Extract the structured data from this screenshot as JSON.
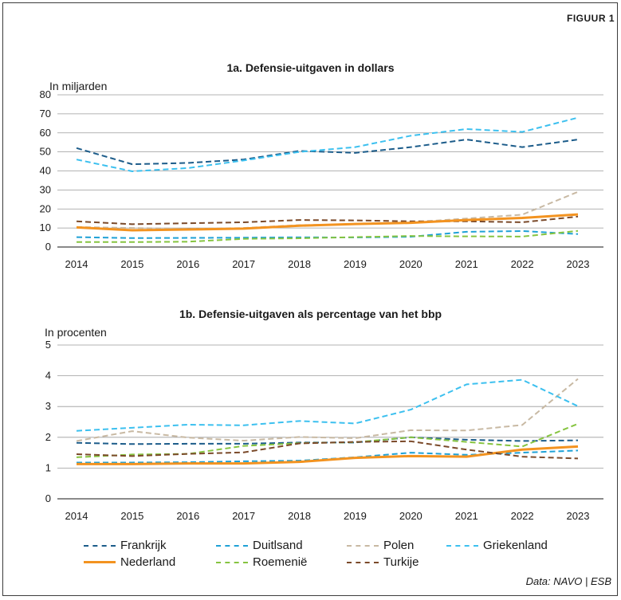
{
  "figure_label": "FIGUUR 1",
  "source": "Data: NAVO | ESB",
  "colors": {
    "Frankrijk": "#1c5c8a",
    "Duitsland": "#1fa1d6",
    "Polen": "#c8b9a3",
    "Griekenland": "#3cc0ef",
    "Nederland": "#f39320",
    "Roemenie": "#86c440",
    "Turkije": "#7b4a2a"
  },
  "legend": [
    {
      "name": "Frankrijk",
      "key": "Frankrijk",
      "style": "dashed"
    },
    {
      "name": "Duitlsand",
      "key": "Duitsland",
      "style": "dashed"
    },
    {
      "name": "Polen",
      "key": "Polen",
      "style": "dashed"
    },
    {
      "name": "Griekenland",
      "key": "Griekenland",
      "style": "dashed"
    },
    {
      "name": "Nederland",
      "key": "Nederland",
      "style": "solid"
    },
    {
      "name": "Roemenië",
      "key": "Roemenie",
      "style": "dashed"
    },
    {
      "name": "Turkije",
      "key": "Turkije",
      "style": "dashed"
    }
  ],
  "chart_data": [
    {
      "type": "line",
      "title": "1a. Defensie-uitgaven in dollars",
      "ylabel": "In miljarden",
      "xlabel": "",
      "x": [
        "2014",
        "2015",
        "2016",
        "2017",
        "2018",
        "2019",
        "2020",
        "2021",
        "2022",
        "2023"
      ],
      "ylim": [
        0,
        80
      ],
      "yticks": [
        0,
        10,
        20,
        30,
        40,
        50,
        60,
        70,
        80
      ],
      "grid": true,
      "series": [
        {
          "key": "Frankrijk",
          "values": [
            52,
            43.5,
            44.2,
            46,
            50.5,
            49.5,
            52.5,
            56.5,
            52.5,
            56.5
          ]
        },
        {
          "key": "Griekenland",
          "values": [
            46,
            39.8,
            41.5,
            45.5,
            50,
            52.5,
            58.5,
            62,
            60.5,
            68
          ]
        },
        {
          "key": "Polen",
          "values": [
            10.5,
            10,
            9.5,
            10,
            11.5,
            12,
            13,
            15,
            17,
            29
          ]
        },
        {
          "key": "Turkije",
          "values": [
            13.5,
            12,
            12.5,
            13,
            14.2,
            14,
            13.5,
            13.5,
            13,
            16
          ]
        },
        {
          "key": "Nederland",
          "values": [
            10.3,
            8.8,
            9.2,
            9.7,
            11.2,
            12.1,
            12.7,
            14.2,
            15.3,
            17.1
          ]
        },
        {
          "key": "Duitsland",
          "values": [
            5.2,
            4.7,
            4.8,
            4.9,
            5.1,
            5,
            5.4,
            8,
            8.4,
            6.8
          ]
        },
        {
          "key": "Roemenie",
          "values": [
            2.6,
            2.6,
            2.8,
            4.3,
            4.6,
            5.2,
            5.8,
            5.6,
            5.5,
            8.5
          ]
        }
      ]
    },
    {
      "type": "line",
      "title": "1b. Defensie-uitgaven als percentage van het bbp",
      "ylabel": "In procenten",
      "xlabel": "",
      "x": [
        "2014",
        "2015",
        "2016",
        "2017",
        "2018",
        "2019",
        "2020",
        "2021",
        "2022",
        "2023"
      ],
      "ylim": [
        0,
        5
      ],
      "yticks": [
        0,
        1,
        2,
        3,
        4,
        5
      ],
      "grid": true,
      "series": [
        {
          "key": "Frankrijk",
          "values": [
            1.82,
            1.78,
            1.79,
            1.79,
            1.83,
            1.83,
            2.0,
            1.92,
            1.88,
            1.9
          ]
        },
        {
          "key": "Duitsland",
          "values": [
            1.18,
            1.18,
            1.19,
            1.22,
            1.24,
            1.35,
            1.5,
            1.43,
            1.5,
            1.57
          ]
        },
        {
          "key": "Polen",
          "values": [
            1.88,
            2.2,
            1.99,
            1.89,
            2.01,
            1.97,
            2.23,
            2.22,
            2.4,
            3.9
          ]
        },
        {
          "key": "Griekenland",
          "values": [
            2.21,
            2.31,
            2.41,
            2.39,
            2.53,
            2.45,
            2.9,
            3.72,
            3.87,
            3.01
          ]
        },
        {
          "key": "Nederland",
          "values": [
            1.13,
            1.13,
            1.15,
            1.15,
            1.2,
            1.33,
            1.39,
            1.37,
            1.6,
            1.7
          ]
        },
        {
          "key": "Roemenie",
          "values": [
            1.35,
            1.44,
            1.46,
            1.72,
            1.81,
            1.84,
            2.0,
            1.85,
            1.7,
            2.44
          ]
        },
        {
          "key": "Turkije",
          "values": [
            1.45,
            1.39,
            1.46,
            1.51,
            1.8,
            1.85,
            1.87,
            1.6,
            1.37,
            1.31
          ]
        }
      ]
    }
  ]
}
